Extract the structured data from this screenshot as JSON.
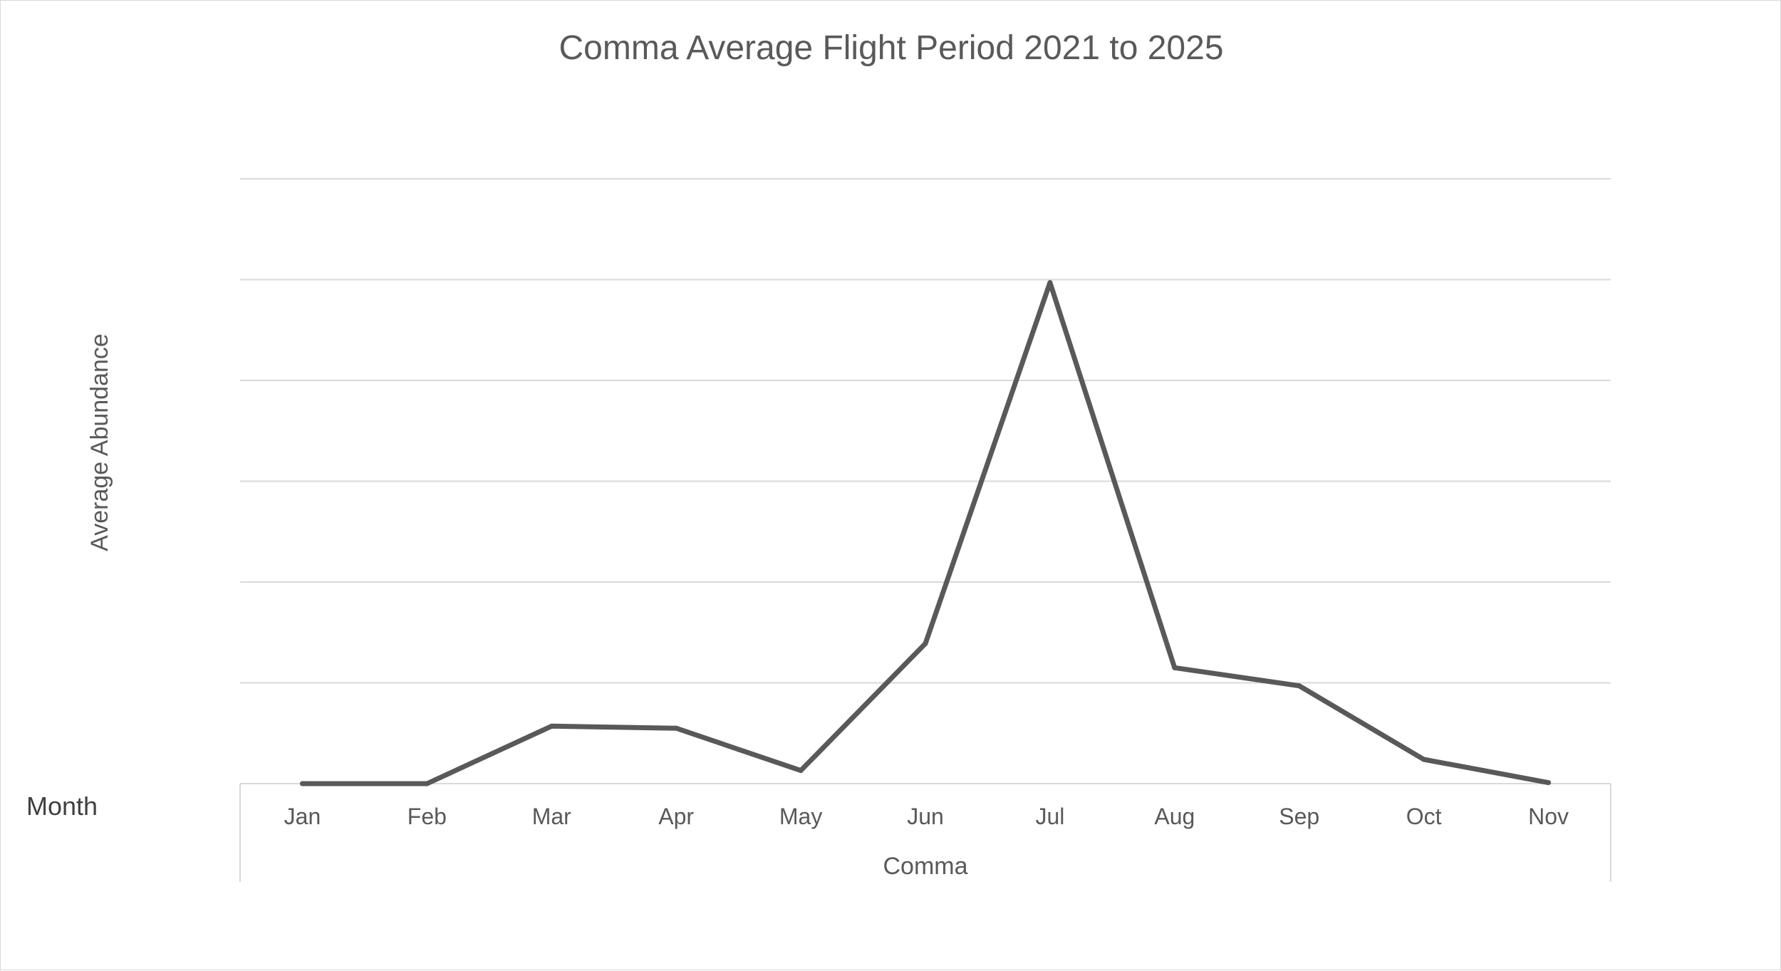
{
  "chart_data": {
    "type": "line",
    "title": "Comma Average Flight Period 2021 to 2025",
    "ylabel": "Average Abundance",
    "xlabel": "Comma",
    "field_label": "Month",
    "categories": [
      "Jan",
      "Feb",
      "Mar",
      "Apr",
      "May",
      "Jun",
      "Jul",
      "Aug",
      "Sep",
      "Oct",
      "Nov"
    ],
    "series": [
      {
        "values": [
          0,
          0,
          0.57,
          0.55,
          0.13,
          1.39,
          4.97,
          1.15,
          0.97,
          0.24,
          0.01
        ]
      }
    ],
    "ylim": [
      0,
      6
    ],
    "y_gridlines": [
      1,
      2,
      3,
      4,
      5,
      6
    ],
    "y_tick_labels_shown": false,
    "grid": true,
    "legend": "none",
    "line_color": "#595959",
    "grid_color": "#d9d9d9"
  }
}
